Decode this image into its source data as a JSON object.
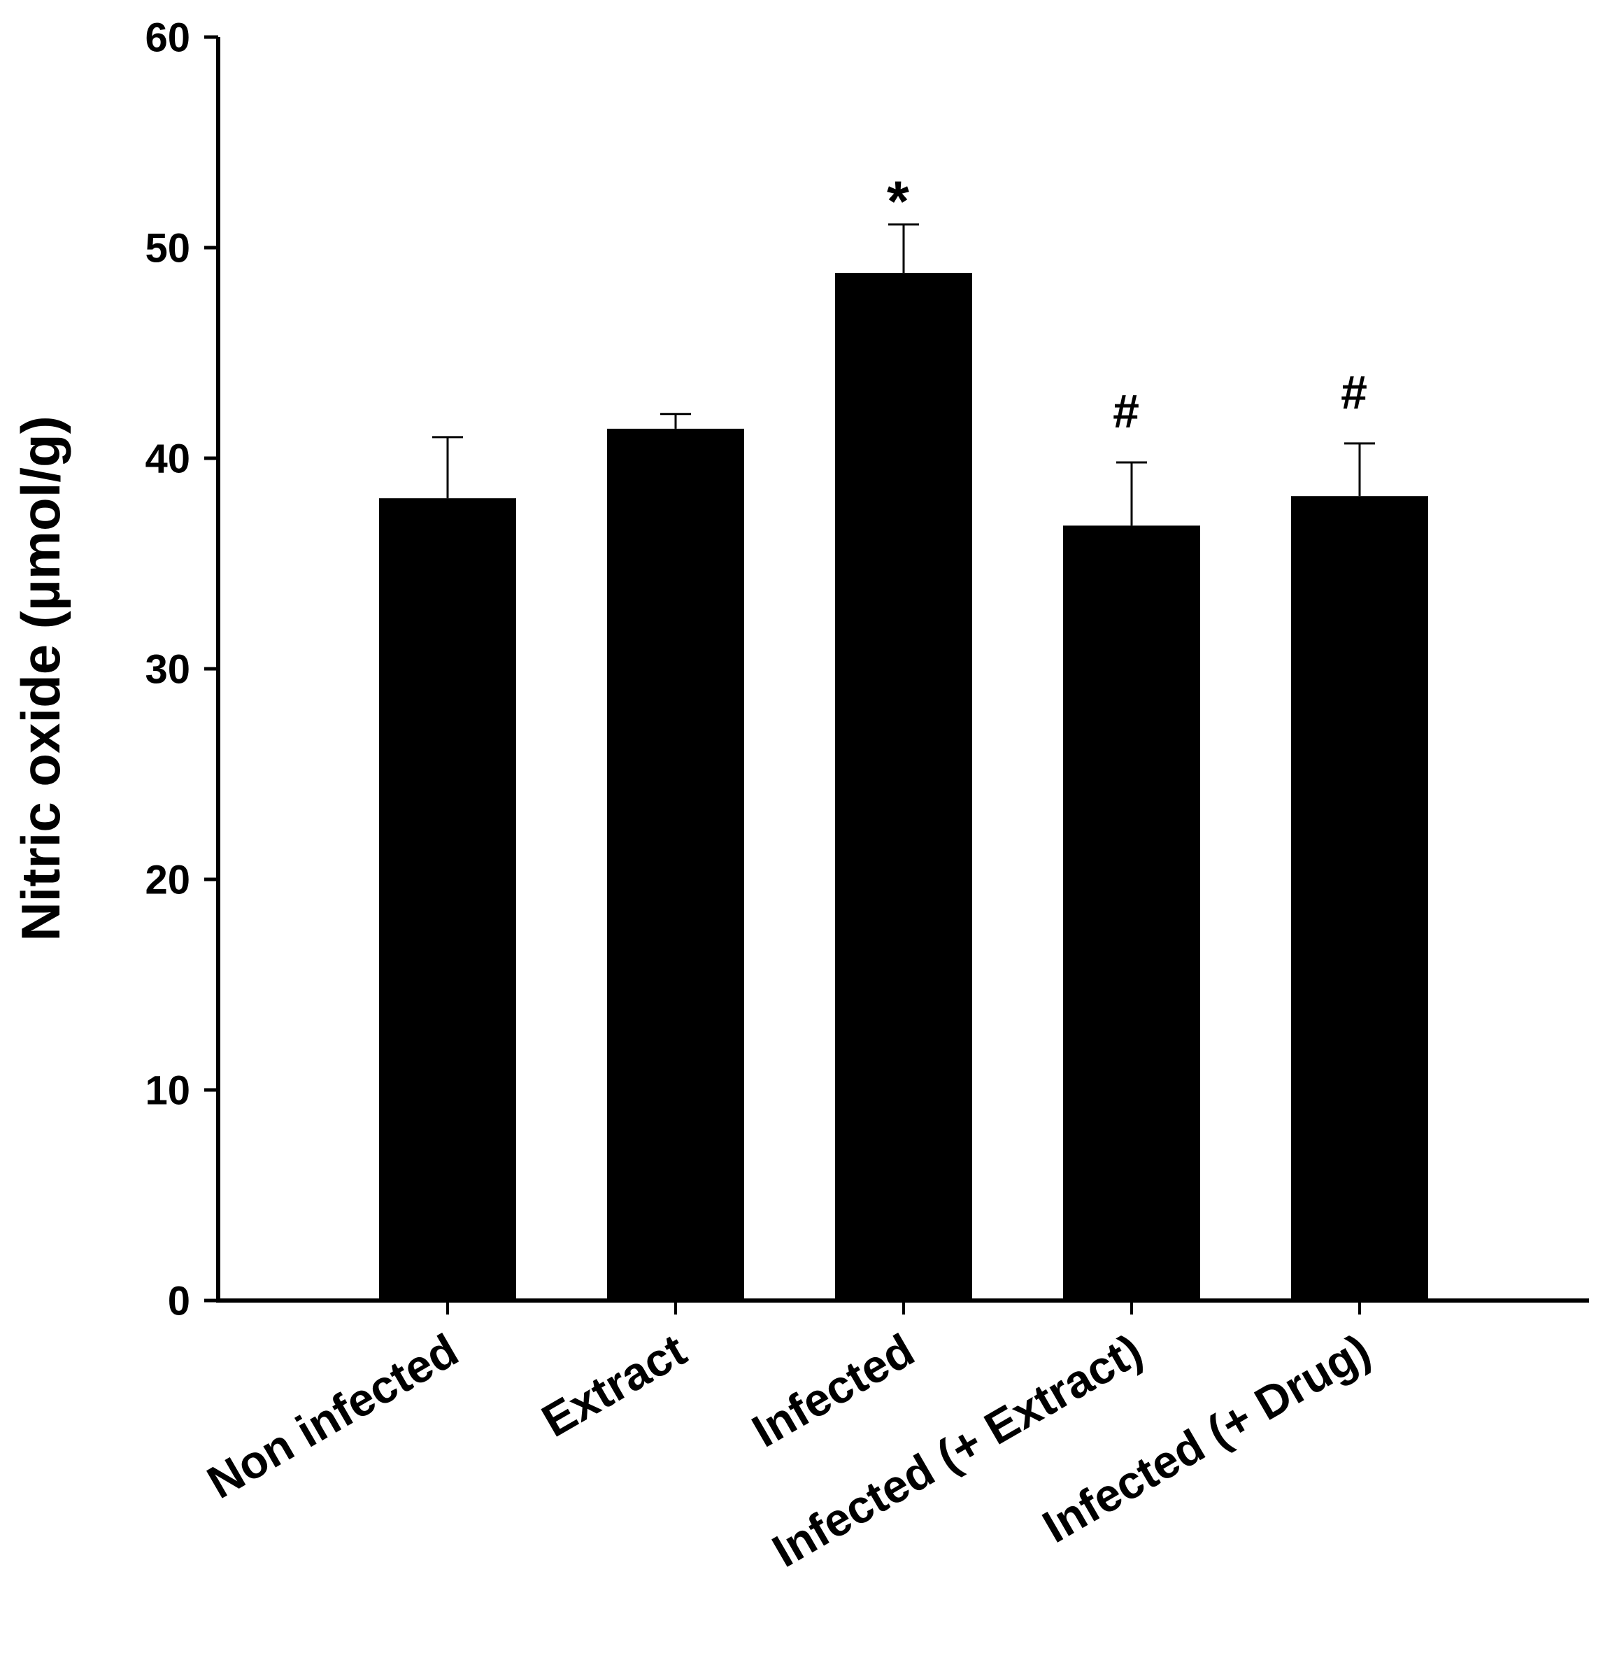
{
  "chart_data": {
    "type": "bar",
    "title": "",
    "xlabel": "",
    "ylabel": "Nitric oxide (µmol/g)",
    "ylim": [
      0,
      60
    ],
    "yticks": [
      "0",
      "10",
      "20",
      "30",
      "40",
      "50",
      "60"
    ],
    "categories": [
      "Non infected",
      "Extract",
      "Infected",
      "Infected (+ Extract)",
      "Infected (+ Drug)"
    ],
    "values": [
      38.1,
      41.4,
      48.8,
      36.8,
      38.2
    ],
    "errors": [
      2.9,
      0.7,
      2.3,
      3.0,
      2.5
    ],
    "annotations": [
      "",
      "",
      "*",
      "#",
      "#"
    ],
    "bar_color": "#000000",
    "grid": false,
    "legend": "none"
  }
}
